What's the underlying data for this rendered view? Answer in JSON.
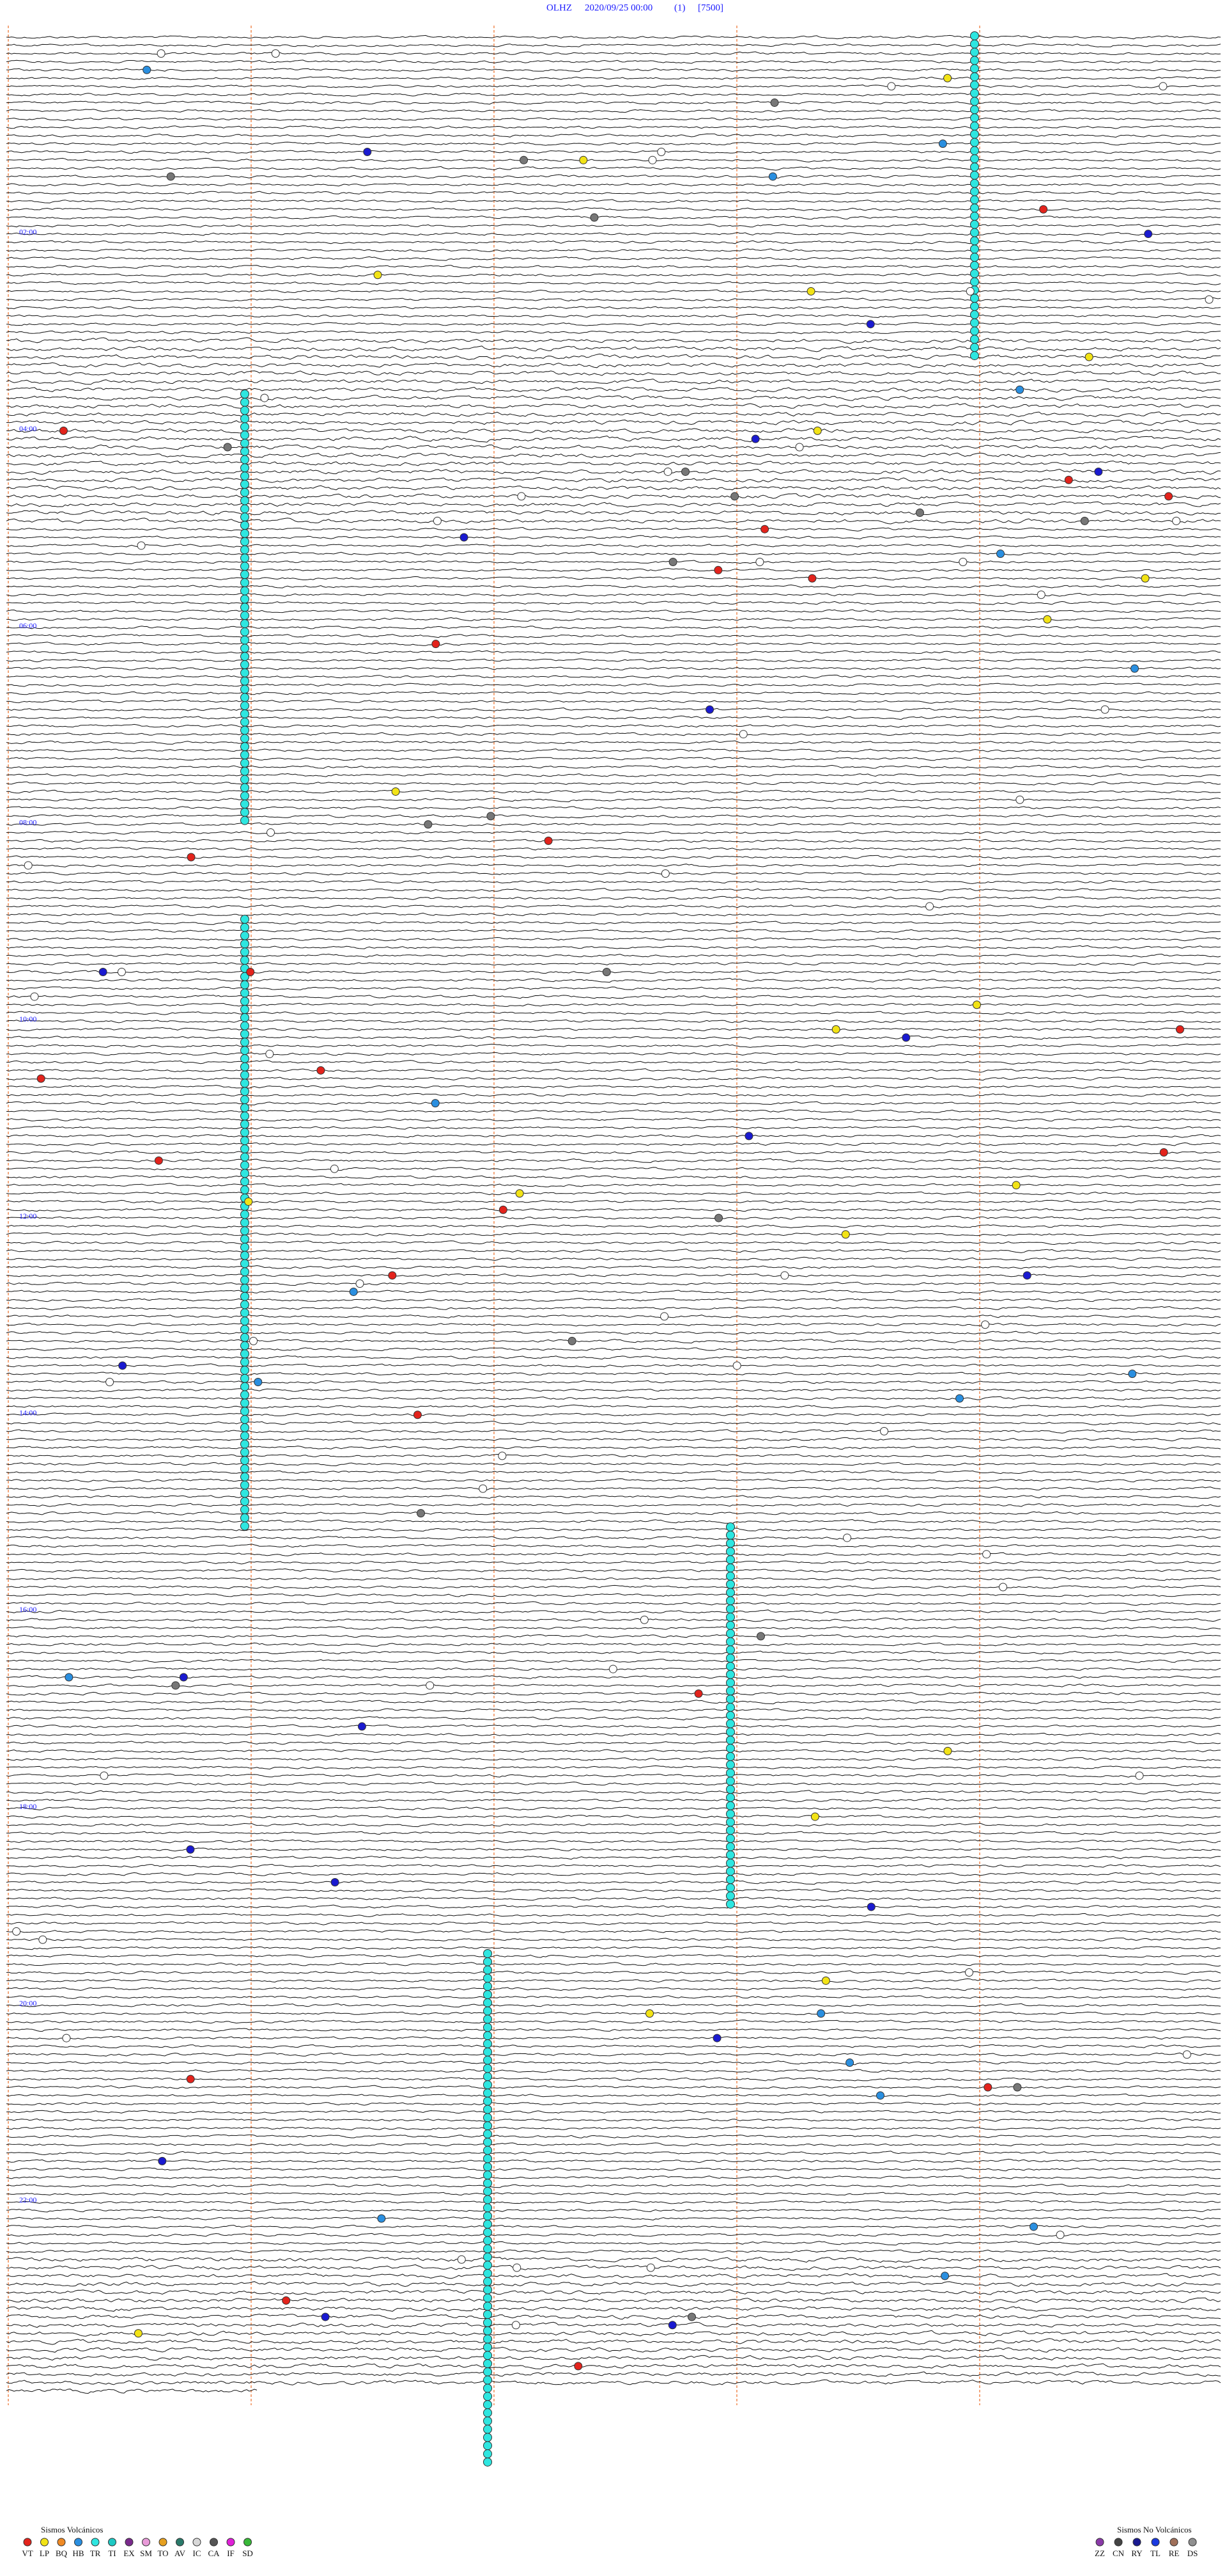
{
  "header": {
    "station": "OLHZ",
    "datetime": "2020/09/25 00:00",
    "channel": "(1)",
    "scale": "[7500]"
  },
  "hour_labels": [
    "02:00",
    "04:00",
    "06:00",
    "08:00",
    "10:00",
    "12:00",
    "14:00",
    "16:00",
    "18:00",
    "20:00",
    "22:00"
  ],
  "legend": {
    "volcanic": {
      "title": "Sismos Volcánicos",
      "items": [
        {
          "code": "VT",
          "color": "#e3231c"
        },
        {
          "code": "LP",
          "color": "#f2e316"
        },
        {
          "code": "BQ",
          "color": "#f08a24"
        },
        {
          "code": "HB",
          "color": "#2a8fe0"
        },
        {
          "code": "TR",
          "color": "#2ee6e0"
        },
        {
          "code": "TI",
          "color": "#1fc9c4"
        },
        {
          "code": "EX",
          "color": "#7a2a8c"
        },
        {
          "code": "SM",
          "color": "#e89ad8"
        },
        {
          "code": "TO",
          "color": "#e6a020"
        },
        {
          "code": "AV",
          "color": "#2a7a6a"
        },
        {
          "code": "IC",
          "color": "#d8d8d8"
        },
        {
          "code": "CA",
          "color": "#555555"
        },
        {
          "code": "IF",
          "color": "#e020d8"
        },
        {
          "code": "SD",
          "color": "#38b838"
        }
      ]
    },
    "non_volcanic": {
      "title": "Sismos No Volcánicos",
      "items": [
        {
          "code": "ZZ",
          "color": "#8a3aa8"
        },
        {
          "code": "CN",
          "color": "#444444"
        },
        {
          "code": "RY",
          "color": "#1a1a90"
        },
        {
          "code": "TL",
          "color": "#1a3ae0"
        },
        {
          "code": "RE",
          "color": "#a0705a"
        },
        {
          "code": "DS",
          "color": "#909090"
        }
      ]
    }
  }
}
